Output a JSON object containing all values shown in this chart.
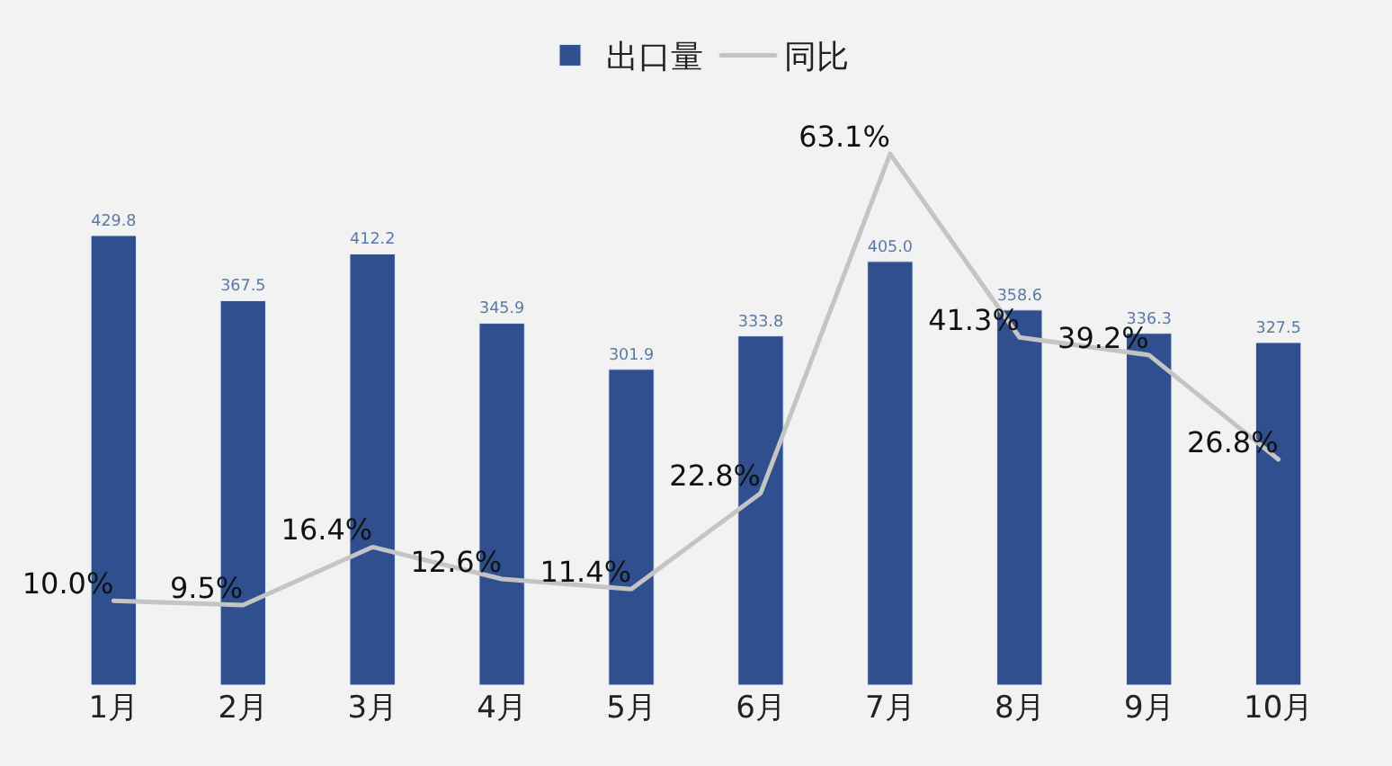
{
  "chart_data": {
    "type": "bar",
    "categories": [
      "1月",
      "2月",
      "3月",
      "4月",
      "5月",
      "6月",
      "7月",
      "8月",
      "9月",
      "10月"
    ],
    "series": [
      {
        "name": "出口量",
        "color": "#2f4f8f",
        "values": [
          429.8,
          367.5,
          412.2,
          345.9,
          301.9,
          333.8,
          405.0,
          358.6,
          336.3,
          327.5
        ],
        "value_labels": [
          "429.8",
          "367.5",
          "412.2",
          "345.9",
          "301.9",
          "333.8",
          "405.0",
          "358.6",
          "336.3",
          "327.5"
        ]
      },
      {
        "name": "同比",
        "type": "line",
        "axis": "y2",
        "color": "#c4c4c4",
        "values": [
          10.0,
          9.5,
          16.4,
          12.6,
          11.4,
          22.8,
          63.1,
          41.3,
          39.2,
          26.8
        ],
        "value_labels": [
          "10.0%",
          "9.5%",
          "16.4%",
          "12.6%",
          "11.4%",
          "22.8%",
          "63.1%",
          "41.3%",
          "39.2%",
          "26.8%"
        ]
      }
    ],
    "legend": "top",
    "grid": false,
    "tick_labels": "x",
    "marker": "none"
  }
}
